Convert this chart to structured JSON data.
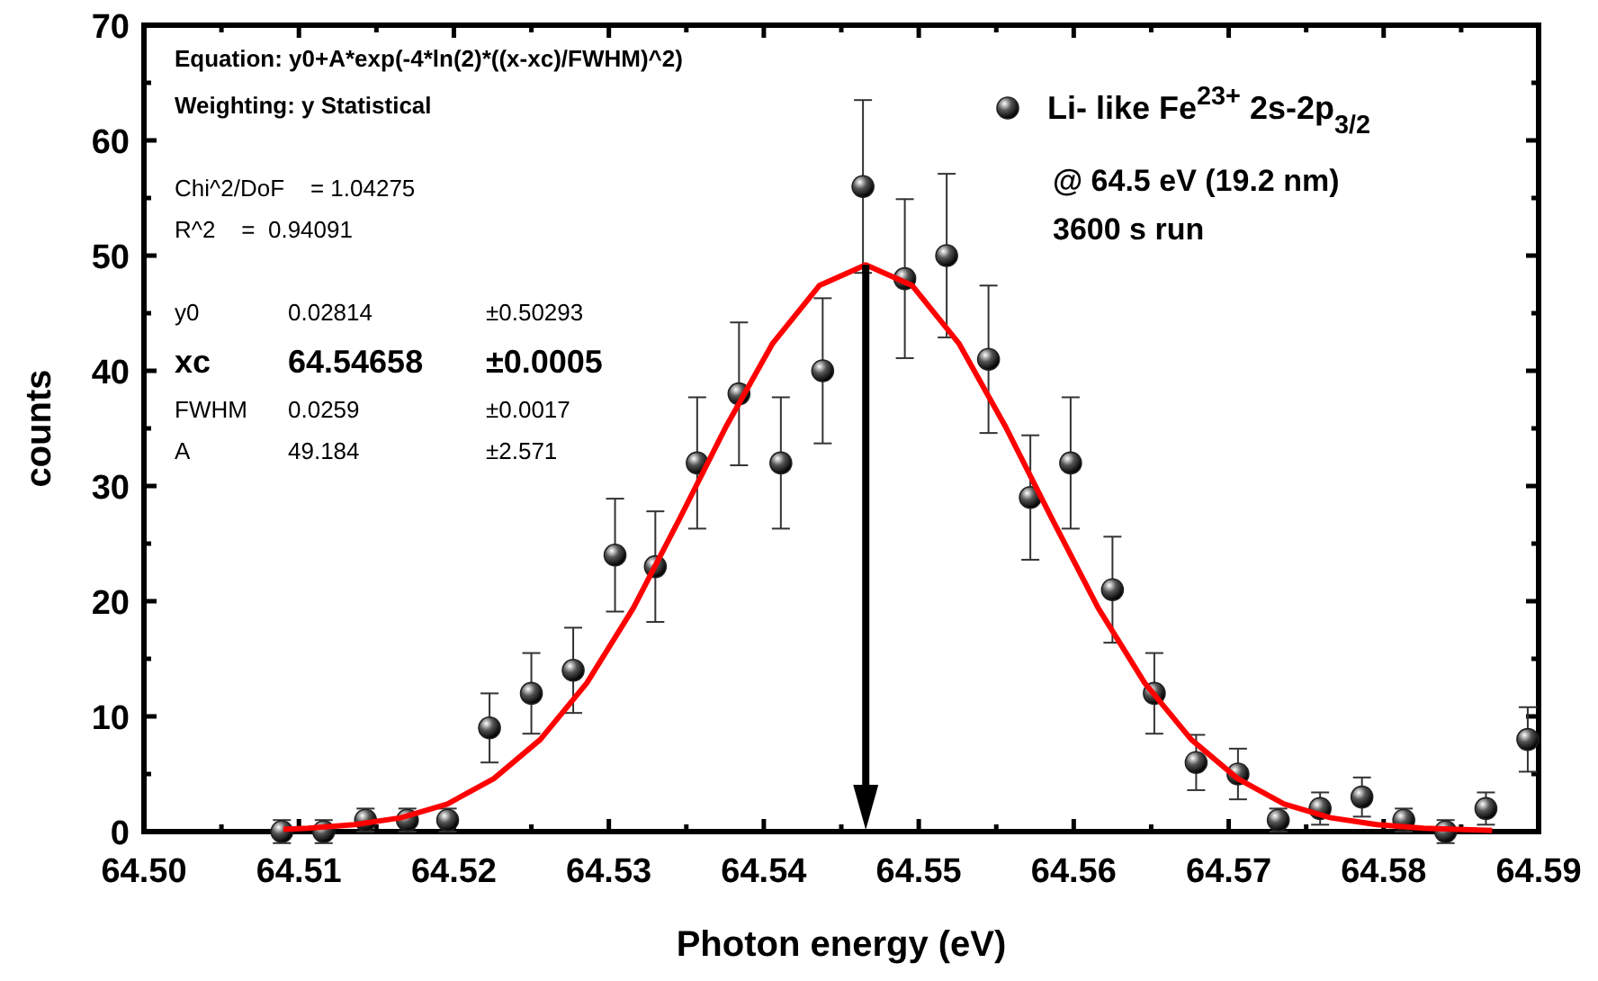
{
  "chart_data": {
    "type": "scatter",
    "xlabel": "Photon energy (eV)",
    "ylabel": "counts",
    "xlim": [
      64.5,
      64.59
    ],
    "ylim": [
      0,
      70
    ],
    "xticks": [
      {
        "value": 64.5,
        "label": "64.50"
      },
      {
        "value": 64.505,
        "label": null
      },
      {
        "value": 64.51,
        "label": "64.51"
      },
      {
        "value": 64.515,
        "label": null
      },
      {
        "value": 64.52,
        "label": "64.52"
      },
      {
        "value": 64.525,
        "label": null
      },
      {
        "value": 64.53,
        "label": "64.53"
      },
      {
        "value": 64.535,
        "label": null
      },
      {
        "value": 64.54,
        "label": "64.54"
      },
      {
        "value": 64.545,
        "label": null
      },
      {
        "value": 64.55,
        "label": "64.55"
      },
      {
        "value": 64.555,
        "label": null
      },
      {
        "value": 64.56,
        "label": "64.56"
      },
      {
        "value": 64.565,
        "label": null
      },
      {
        "value": 64.57,
        "label": "64.57"
      },
      {
        "value": 64.575,
        "label": null
      },
      {
        "value": 64.58,
        "label": "64.58"
      },
      {
        "value": 64.585,
        "label": null
      },
      {
        "value": 64.59,
        "label": "64.59"
      }
    ],
    "yticks": [
      0,
      {
        "value": 5,
        "label": null
      },
      10,
      {
        "value": 15,
        "label": null
      },
      20,
      {
        "value": 25,
        "label": null
      },
      30,
      {
        "value": 35,
        "label": null
      },
      40,
      {
        "value": 45,
        "label": null
      },
      50,
      {
        "value": 55,
        "label": null
      },
      60,
      {
        "value": 65,
        "label": null
      },
      70
    ],
    "legend": "top right",
    "marker": "circle",
    "grid": false,
    "series": [
      {
        "name": "Li- like Fe$^{23+}$ 2s-2p$_{3/2}$",
        "color": "#222222",
        "x": [
          64.5089,
          64.5116,
          64.5143,
          64.517,
          64.5196,
          64.5223,
          64.525,
          64.5277,
          64.5304,
          64.533,
          64.5357,
          64.5384,
          64.5411,
          64.5438,
          64.5464,
          64.5491,
          64.5518,
          64.5545,
          64.5572,
          64.5598,
          64.5625,
          64.5652,
          64.5679,
          64.5706,
          64.5732,
          64.5759,
          64.5786,
          64.5813,
          64.584,
          64.5866,
          64.5893
        ],
        "values": [
          0,
          0,
          1,
          1,
          1,
          9,
          12,
          14,
          24,
          23,
          32,
          38,
          32,
          40,
          56,
          48,
          50,
          41,
          29,
          32,
          21,
          12,
          6,
          5,
          1,
          2,
          3,
          1,
          0,
          2,
          8
        ],
        "errors": [
          1,
          1,
          1,
          1,
          1,
          3,
          3.5,
          3.7,
          4.9,
          4.8,
          5.7,
          6.2,
          5.7,
          6.3,
          7.5,
          6.9,
          7.1,
          6.4,
          5.4,
          5.7,
          4.6,
          3.5,
          2.4,
          2.2,
          1,
          1.4,
          1.7,
          1,
          1,
          1.4,
          2.8
        ]
      },
      {
        "type": "line",
        "color": "#ff0000",
        "line_style": "solid",
        "marker": "none",
        "x": [
          64.509,
          64.51058,
          64.51358,
          64.51658,
          64.51958,
          64.52258,
          64.52558,
          64.52858,
          64.53158,
          64.53458,
          64.53758,
          64.54058,
          64.54358,
          64.54658,
          64.54958,
          64.55258,
          64.55558,
          64.55858,
          64.56158,
          64.56458,
          64.56758,
          64.57058,
          64.57358,
          64.57658,
          64.57958,
          64.58258,
          64.587
        ],
        "values": [
          0.2,
          0.3,
          0.6,
          1.2,
          2.4,
          4.6,
          8.0,
          12.9,
          19.4,
          27.2,
          35.2,
          42.4,
          47.4,
          49.2,
          47.4,
          42.4,
          35.2,
          27.2,
          19.4,
          12.9,
          8.0,
          4.6,
          2.4,
          1.2,
          0.6,
          0.3,
          0.1
        ]
      }
    ],
    "ref_lines": [
      {
        "axis": "x",
        "value": 64.54658,
        "color": "#000000"
      }
    ],
    "annotations": [
      "Equation: y0+A*exp(-4*ln(2)*((x-xc)/FWHM)^2)",
      "Weighting: y Statistical",
      "Chi^2/DoF    = 1.04275",
      "R^2    =  0.94091",
      "y0",
      "0.02814",
      "±0.50293",
      "xc",
      "64.54658",
      "±0.0005",
      "FWHM",
      "0.0259",
      "±0.0017",
      "A",
      "49.184",
      "±2.571",
      "@ 64.5 eV (19.2 nm)",
      "3600 s run"
    ]
  }
}
